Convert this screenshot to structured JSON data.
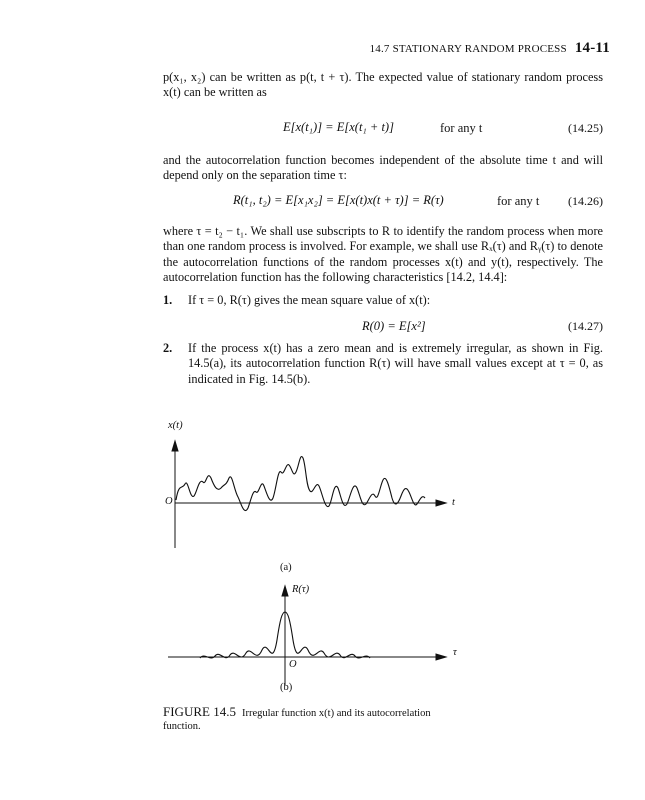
{
  "header": {
    "section": "14.7  STATIONARY RANDOM PROCESS",
    "page_number": "14-11"
  },
  "para1": {
    "line1": "p(x₁, x₂) can be written as p(t, t + τ). The expected value of stationary random process",
    "line2": "x(t) can be written as"
  },
  "eq_14_25": {
    "expr": "E[x(t₁)] = E[x(t₁ + t)]",
    "cond": "for any t",
    "num": "(14.25)"
  },
  "para2": {
    "text": "and the autocorrelation function becomes independent of the absolute time t and will depend only on the separation time τ:"
  },
  "eq_14_26": {
    "expr": "R(t₁, t₂) = E[x₁x₂] = E[x(t)x(t + τ)] = R(τ)",
    "cond": "for any t",
    "num": "(14.26)"
  },
  "para3": {
    "text": "where τ = t₂ − t₁. We shall use subscripts to R to identify the random process when more than one random process is involved. For example, we shall use Rₓ(τ) and Rᵧ(τ) to denote the autocorrelation functions of the random processes x(t) and y(t), respectively. The autocorrelation function has the following characteristics [14.2, 14.4]:"
  },
  "item1": {
    "num": "1.",
    "text": "If τ = 0, R(τ) gives the mean square value of x(t):"
  },
  "eq_14_27": {
    "expr": "R(0) = E[x²]",
    "num": "(14.27)"
  },
  "item2": {
    "num": "2.",
    "text": "If the process x(t) has a zero mean and is extremely irregular, as shown in Fig. 14.5(a), its autocorrelation function R(τ) will have small values except at τ = 0, as indicated in Fig. 14.5(b)."
  },
  "figure": {
    "a": {
      "y_label": "x(t)",
      "origin": "O",
      "x_label": "t",
      "sublabel": "(a)"
    },
    "b": {
      "y_label": "R(τ)",
      "origin": "O",
      "x_label": "τ",
      "sublabel": "(b)"
    },
    "caption_label": "FIGURE 14.5",
    "caption_text": "Irregular function x(t) and its autocorrelation function."
  }
}
